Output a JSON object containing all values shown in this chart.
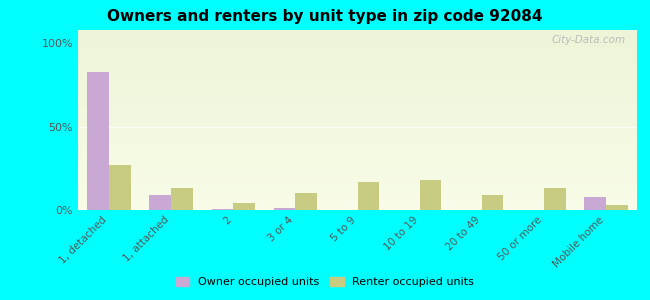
{
  "title": "Owners and renters by unit type in zip code 92084",
  "categories": [
    "1, detached",
    "1, attached",
    "2",
    "3 or 4",
    "5 to 9",
    "10 to 19",
    "20 to 49",
    "50 or more",
    "Mobile home"
  ],
  "owner_values": [
    83,
    9,
    0.5,
    1,
    0,
    0,
    0,
    0,
    8
  ],
  "renter_values": [
    27,
    13,
    4,
    10,
    17,
    18,
    9,
    13,
    3
  ],
  "owner_color": "#c9a8d4",
  "renter_color": "#c8cc82",
  "grad_top": "#edf5d8",
  "grad_bottom": "#f8fce8",
  "outer_bg": "#00ffff",
  "yticks": [
    0,
    50,
    100
  ],
  "ylabels": [
    "0%",
    "50%",
    "100%"
  ],
  "ylim_max": 108,
  "bar_width": 0.35,
  "legend_owner": "Owner occupied units",
  "legend_renter": "Renter occupied units",
  "watermark": "City-Data.com"
}
